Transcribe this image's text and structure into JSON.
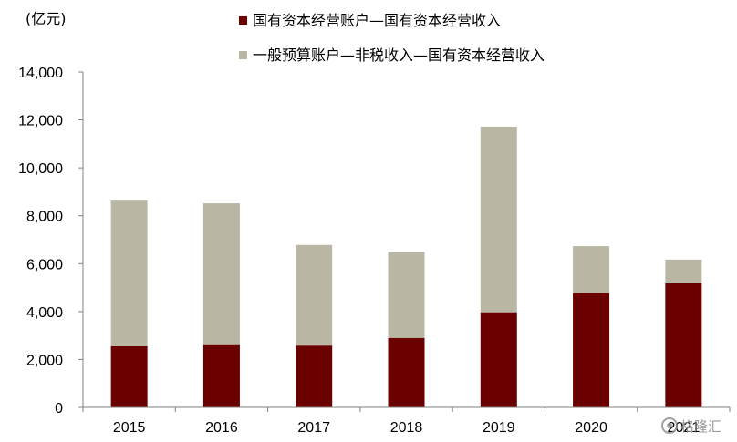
{
  "chart_data": {
    "type": "bar",
    "stacked": true,
    "unit_label": "(亿元)",
    "categories": [
      "2015",
      "2016",
      "2017",
      "2018",
      "2019",
      "2020",
      "2021"
    ],
    "series": [
      {
        "name": "国有资本经营账户—国有资本经营收入",
        "color": "#6b0000",
        "values": [
          2550,
          2600,
          2580,
          2900,
          3970,
          4780,
          5180
        ]
      },
      {
        "name": "一般预算账户—非税收入—国有资本经营收入",
        "color": "#b9b7a3",
        "values": [
          6080,
          5920,
          4200,
          3590,
          7750,
          1950,
          990
        ]
      }
    ],
    "ylim": [
      0,
      14000
    ],
    "yticks": [
      0,
      2000,
      4000,
      6000,
      8000,
      10000,
      12000,
      14000
    ],
    "ytick_labels": [
      "0",
      "2,000",
      "4,000",
      "6,000",
      "8,000",
      "10,000",
      "12,000",
      "14,000"
    ],
    "grid": false,
    "legend_position": "top"
  },
  "watermark": {
    "text": "格隆汇",
    "icon": "watermark-logo-icon"
  }
}
